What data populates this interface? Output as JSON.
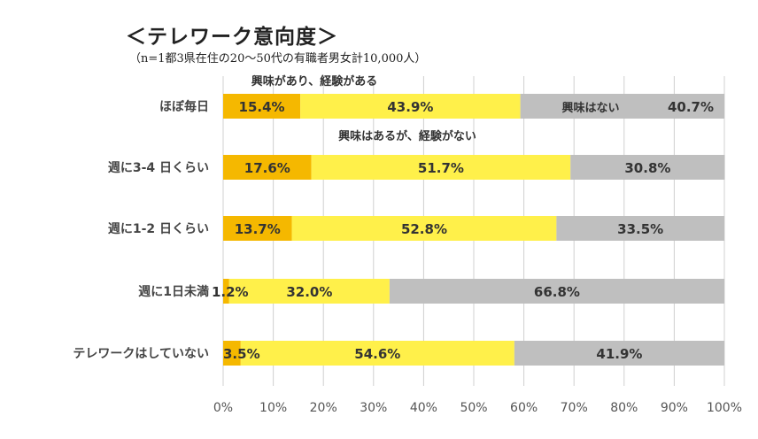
{
  "title": "＜テレワーク意向度＞",
  "subtitle": "（n=1都3県在住の20～50代の有職者男女計10,000人）",
  "chart_data": {
    "type": "bar",
    "orientation": "horizontal",
    "stacked": true,
    "percent": true,
    "categories": [
      "ほぼ毎日",
      "週に3-4 日くらい",
      "週に1-2 日くらい",
      "週に1日未満",
      "テレワークはしていない"
    ],
    "series": [
      {
        "name": "興味があり、経験がある",
        "values": [
          15.4,
          17.6,
          13.7,
          1.2,
          3.5
        ],
        "labels": [
          "15.4%",
          "17.6%",
          "13.7%",
          "1.2%",
          "3.5%"
        ],
        "color": "#F5B800"
      },
      {
        "name": "興味はあるが、経験がない",
        "values": [
          43.9,
          51.7,
          52.8,
          32.0,
          54.6
        ],
        "labels": [
          "43.9%",
          "51.7%",
          "52.8%",
          "32.0%",
          "54.6%"
        ],
        "color": "#FFF04A"
      },
      {
        "name": "興味はない",
        "values": [
          40.7,
          30.8,
          33.5,
          66.8,
          41.9
        ],
        "labels": [
          "40.7%",
          "30.8%",
          "33.5%",
          "66.8%",
          "41.9%"
        ],
        "color": "#BFBFBF"
      }
    ],
    "xlim": [
      0,
      100
    ],
    "xticks": [
      "0%",
      "10%",
      "20%",
      "30%",
      "40%",
      "50%",
      "60%",
      "70%",
      "80%",
      "90%",
      "100%"
    ],
    "grid": true,
    "legend": "annotations"
  }
}
